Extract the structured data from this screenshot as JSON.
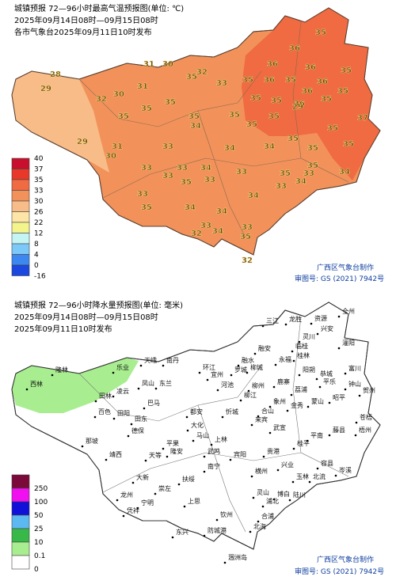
{
  "top_map": {
    "title": "城镇预报 72—96小时最高气温预报图(单位: ℃)",
    "period": "2025年09月14日08时—09月15日08时",
    "issued": "各市气象台2025年09月11日10时发布",
    "legend": {
      "labels": [
        "40",
        "37",
        "35",
        "33",
        "30",
        "26",
        "22",
        "12",
        "8",
        "4",
        "0",
        "-16"
      ],
      "colors": [
        "#c8102e",
        "#e8382a",
        "#f06a42",
        "#f2925a",
        "#f8bc88",
        "#fde5a8",
        "#f4f48c",
        "#c4f4f4",
        "#7cc8f8",
        "#3c88f0",
        "#1c48e0"
      ]
    },
    "temps": [
      "35",
      "36",
      "36",
      "36",
      "35",
      "36",
      "35",
      "36",
      "35",
      "36",
      "35",
      "35",
      "35",
      "36",
      "35",
      "37",
      "35",
      "35",
      "35",
      "29",
      "28",
      "29",
      "32",
      "30",
      "31",
      "30",
      "31",
      "32",
      "35",
      "33",
      "35",
      "35",
      "35",
      "35",
      "29",
      "31",
      "30",
      "33",
      "34",
      "34",
      "34",
      "33",
      "33",
      "33",
      "33",
      "35",
      "33",
      "34",
      "33",
      "34",
      "33",
      "35",
      "35",
      "35",
      "35",
      "35",
      "34",
      "33",
      "35",
      "34",
      "34",
      "33",
      "32",
      "34",
      "33",
      "35",
      "32",
      "34",
      "35"
    ],
    "credit": "广西区气象台制作",
    "approval": "审图号: GS (2021) 7942号"
  },
  "bottom_map": {
    "title": "城镇预报 72—96小时降水量预报图(单位: 毫米)",
    "period": "2025年09月14日08时—09月15日08时",
    "issued": "2025年09月11日10时发布",
    "legend": {
      "labels": [
        "250",
        "100",
        "50",
        "25",
        "10",
        "0.1",
        "0"
      ],
      "colors": [
        "#7a0a3a",
        "#f010f0",
        "#1010d8",
        "#5cb8f0",
        "#38b848",
        "#a8ee90",
        "#ffffff"
      ]
    },
    "places": [
      "三江",
      "龙胜",
      "全州",
      "资源",
      "融安",
      "融水",
      "临桂",
      "桂林",
      "灵川",
      "兴安",
      "灌阳",
      "阳朔",
      "恭城",
      "永福",
      "荔浦",
      "平乐",
      "富川",
      "钟山",
      "贺州",
      "昭平",
      "蒙山",
      "金秀",
      "象州",
      "鹿寨",
      "柳州",
      "柳城",
      "罗城",
      "环江",
      "南丹",
      "天峨",
      "乐业",
      "凌云",
      "隆林",
      "西林",
      "田林",
      "凤山",
      "东兰",
      "巴马",
      "河池",
      "宜州",
      "忻城",
      "都安",
      "大化",
      "马山",
      "上林",
      "宾阳",
      "武宣",
      "来宾",
      "合山",
      "桂平",
      "平南",
      "藤县",
      "梧州",
      "苍梧",
      "岑溪",
      "容县",
      "北流",
      "玉林",
      "陆川",
      "博白",
      "兴业",
      "贵港",
      "横州",
      "灵山",
      "浦北",
      "钦州",
      "防城港",
      "东兴",
      "上思",
      "北海",
      "合浦",
      "涠洲岛",
      "南宁",
      "武鸣",
      "隆安",
      "扶绥",
      "崇左",
      "宁明",
      "凭祥",
      "龙州",
      "大新",
      "天等",
      "德保",
      "靖西",
      "那坡",
      "田阳",
      "田东",
      "百色",
      "平果",
      "柳江"
    ],
    "credit": "广西区气象台制作",
    "approval": "审图号: GS (2021) 7942号"
  }
}
